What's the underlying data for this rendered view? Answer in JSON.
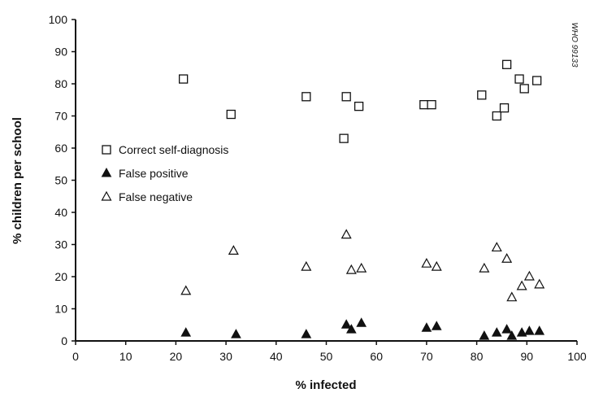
{
  "chart_data": {
    "type": "scatter",
    "xlabel": "% infected",
    "ylabel": "% children per school",
    "xlim": [
      0,
      100
    ],
    "ylim": [
      0,
      100
    ],
    "xticks": [
      0,
      10,
      20,
      30,
      40,
      50,
      60,
      70,
      80,
      90,
      100
    ],
    "yticks": [
      0,
      10,
      20,
      30,
      40,
      50,
      60,
      70,
      80,
      90,
      100
    ],
    "grid": false,
    "legend_position": "left-middle",
    "side_code": "WHO 99133",
    "series": [
      {
        "name": "Correct self-diagnosis",
        "marker": "square-open",
        "points": [
          [
            21.5,
            81.5
          ],
          [
            31,
            70.5
          ],
          [
            46,
            76
          ],
          [
            54,
            76
          ],
          [
            56.5,
            73
          ],
          [
            53.5,
            63
          ],
          [
            69.5,
            73.5
          ],
          [
            71,
            73.5
          ],
          [
            81,
            76.5
          ],
          [
            84,
            70
          ],
          [
            85.5,
            72.5
          ],
          [
            86,
            86
          ],
          [
            88.5,
            81.5
          ],
          [
            89.5,
            78.5
          ],
          [
            92,
            81
          ]
        ]
      },
      {
        "name": "False positive",
        "marker": "triangle-filled",
        "points": [
          [
            22,
            2.5
          ],
          [
            32,
            2
          ],
          [
            46,
            2
          ],
          [
            54,
            5
          ],
          [
            55,
            3.5
          ],
          [
            57,
            5.5
          ],
          [
            70,
            4
          ],
          [
            72,
            4.5
          ],
          [
            81.5,
            1.5
          ],
          [
            84,
            2.5
          ],
          [
            86,
            3.5
          ],
          [
            87,
            1.5
          ],
          [
            89,
            2.5
          ],
          [
            90.5,
            3
          ],
          [
            92.5,
            3
          ]
        ]
      },
      {
        "name": "False negative",
        "marker": "triangle-open",
        "points": [
          [
            22,
            15.5
          ],
          [
            31.5,
            28
          ],
          [
            46,
            23
          ],
          [
            54,
            33
          ],
          [
            55,
            22
          ],
          [
            57,
            22.5
          ],
          [
            70,
            24
          ],
          [
            72,
            23
          ],
          [
            81.5,
            22.5
          ],
          [
            84,
            29
          ],
          [
            86,
            25.5
          ],
          [
            87,
            13.5
          ],
          [
            89,
            17
          ],
          [
            90.5,
            20
          ],
          [
            92.5,
            17.5
          ]
        ]
      }
    ]
  }
}
